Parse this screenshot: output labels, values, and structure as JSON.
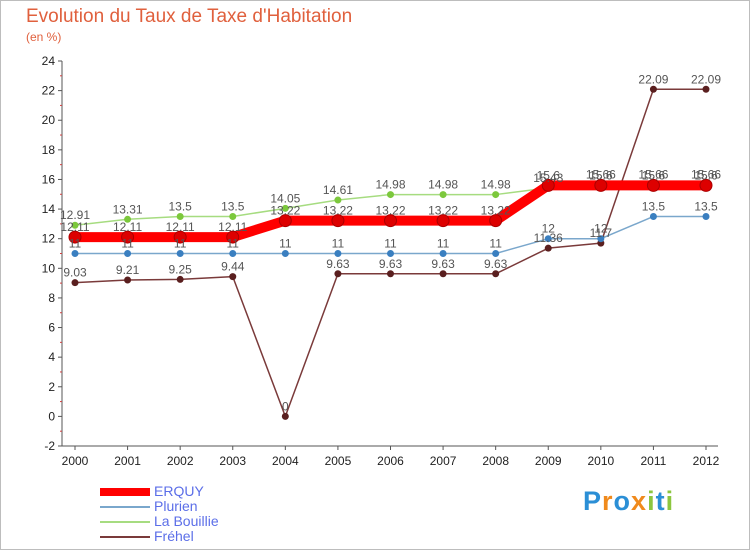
{
  "chart_data": {
    "type": "line",
    "title": "Evolution du Taux de Taxe d'Habitation",
    "subtitle": "(en %)",
    "xlabel": "",
    "ylabel": "(en %)",
    "ylim": [
      -2,
      24
    ],
    "yticks": [
      "-2",
      "0",
      "2",
      "4",
      "6",
      "8",
      "10",
      "12",
      "14",
      "16",
      "18",
      "20",
      "22",
      "24"
    ],
    "x": [
      "2000",
      "2001",
      "2002",
      "2003",
      "2004",
      "2005",
      "2006",
      "2007",
      "2008",
      "2009",
      "2010",
      "2011",
      "2012"
    ],
    "series": [
      {
        "name": "ERQUY",
        "color": "#ff0000",
        "marker": "#dd0000",
        "values": [
          12.11,
          12.11,
          12.11,
          12.11,
          13.22,
          13.22,
          13.22,
          13.22,
          13.22,
          15.6,
          15.6,
          15.6,
          15.6
        ],
        "labels": [
          "12.11",
          "12.11",
          "12.11",
          "12.11",
          "13.22",
          "13.22",
          "13.22",
          "13.22",
          "13.22",
          "15.6",
          "15.6",
          "15.6",
          "15.6"
        ]
      },
      {
        "name": "Plurien",
        "color": "#7aa7cc",
        "marker": "#3a7fc0",
        "values": [
          11,
          11,
          11,
          11,
          11,
          11,
          11,
          11,
          11,
          12,
          12,
          13.5,
          13.5
        ],
        "labels": [
          "11",
          "11",
          "11",
          "11",
          "11",
          "11",
          "11",
          "11",
          "11",
          "12",
          "12",
          "13.5",
          "13.5"
        ]
      },
      {
        "name": "La Bouillie",
        "color": "#a6dc80",
        "marker": "#7cc83c",
        "values": [
          12.91,
          13.31,
          13.5,
          13.5,
          14.05,
          14.61,
          14.98,
          14.98,
          14.98,
          15.43,
          15.66,
          15.66,
          15.66
        ],
        "labels": [
          "12.91",
          "13.31",
          "13.5",
          "13.5",
          "14.05",
          "14.61",
          "14.98",
          "14.98",
          "14.98",
          "15.43",
          "15.66",
          "15.66",
          "15.66"
        ]
      },
      {
        "name": "Fréhel",
        "color": "#7a3a3a",
        "marker": "#5a1f1f",
        "values": [
          9.03,
          9.21,
          9.25,
          9.44,
          0,
          9.63,
          9.63,
          9.63,
          9.63,
          11.36,
          11.7,
          22.09,
          22.09
        ],
        "labels": [
          "9.03",
          "9.21",
          "9.25",
          "9.44",
          "0",
          "9.63",
          "9.63",
          "9.63",
          "9.63",
          "11.36",
          "11.7",
          "22.09",
          "22.09"
        ]
      }
    ]
  },
  "legend": {
    "items": [
      {
        "label": "ERQUY",
        "color": "#ff0000"
      },
      {
        "label": "Plurien",
        "color": "#7aa7cc"
      },
      {
        "label": "La Bouillie",
        "color": "#a6dc80"
      },
      {
        "label": "Fréhel",
        "color": "#7a3a3a"
      }
    ]
  },
  "logo": {
    "text": "Proxiti",
    "letters": [
      "P",
      "r",
      "o",
      "x",
      "i",
      "t",
      "i"
    ],
    "colors": [
      "#2b8fd6",
      "#f08a1c",
      "#2b8fd6",
      "#f08a1c",
      "#8cc63f",
      "#2b8fd6",
      "#8cc63f"
    ]
  }
}
